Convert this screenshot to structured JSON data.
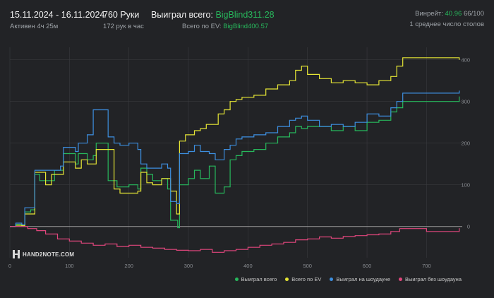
{
  "header": {
    "date_range": "15.11.2024 - 16.11.2024",
    "active_time": "Активен 4ч 25м",
    "hands": "760 Руки",
    "hands_per_hour": "172 рук в час",
    "won_total_label": "Выиграл всего:",
    "won_total_value": "BigBlind311.28",
    "ev_total_label": "Всего по EV:",
    "ev_total_value": "BigBlind400.57",
    "winrate_label": "Винрейт:",
    "winrate_value": "40.96",
    "winrate_hands": "66/100",
    "avg_tables": "1 среднее число столов"
  },
  "logo": {
    "text": "HAND2NOTE.COM"
  },
  "colors": {
    "won": "#27b85c",
    "ev": "#e6e635",
    "showdown": "#3d8fe0",
    "no_showdown": "#e0467c",
    "grid": "#393a3e",
    "zero": "#9a9a9a"
  },
  "chart_data": {
    "type": "line",
    "xlim": [
      0,
      760
    ],
    "ylim": [
      -75,
      430
    ],
    "x_ticks": [
      "0",
      "100",
      "200",
      "300",
      "400",
      "500",
      "600",
      "700"
    ],
    "y_ticks": [
      "0",
      "100",
      "200",
      "300",
      "400"
    ],
    "legend_placement": "bottom-right",
    "series": [
      {
        "name": "Выиграл всего",
        "color": "#27b85c",
        "points": [
          [
            0,
            0
          ],
          [
            10,
            5
          ],
          [
            20,
            2
          ],
          [
            25,
            35
          ],
          [
            35,
            40
          ],
          [
            42,
            125
          ],
          [
            50,
            110
          ],
          [
            60,
            110
          ],
          [
            75,
            135
          ],
          [
            85,
            135
          ],
          [
            90,
            175
          ],
          [
            100,
            175
          ],
          [
            110,
            150
          ],
          [
            115,
            175
          ],
          [
            130,
            160
          ],
          [
            140,
            170
          ],
          [
            145,
            200
          ],
          [
            160,
            200
          ],
          [
            165,
            110
          ],
          [
            180,
            95
          ],
          [
            200,
            100
          ],
          [
            215,
            90
          ],
          [
            220,
            140
          ],
          [
            230,
            125
          ],
          [
            240,
            110
          ],
          [
            255,
            115
          ],
          [
            265,
            90
          ],
          [
            270,
            15
          ],
          [
            282,
            -3
          ],
          [
            285,
            100
          ],
          [
            300,
            115
          ],
          [
            310,
            135
          ],
          [
            320,
            115
          ],
          [
            335,
            145
          ],
          [
            345,
            80
          ],
          [
            360,
            95
          ],
          [
            370,
            160
          ],
          [
            380,
            170
          ],
          [
            390,
            180
          ],
          [
            410,
            185
          ],
          [
            430,
            200
          ],
          [
            450,
            215
          ],
          [
            470,
            225
          ],
          [
            480,
            240
          ],
          [
            490,
            235
          ],
          [
            500,
            240
          ],
          [
            520,
            240
          ],
          [
            540,
            230
          ],
          [
            560,
            240
          ],
          [
            580,
            230
          ],
          [
            600,
            250
          ],
          [
            620,
            255
          ],
          [
            640,
            275
          ],
          [
            650,
            285
          ],
          [
            660,
            300
          ],
          [
            755,
            312
          ]
        ]
      },
      {
        "name": "Всего по EV",
        "color": "#e6e635",
        "points": [
          [
            0,
            0
          ],
          [
            10,
            3
          ],
          [
            20,
            2
          ],
          [
            25,
            30
          ],
          [
            35,
            30
          ],
          [
            42,
            130
          ],
          [
            50,
            130
          ],
          [
            60,
            100
          ],
          [
            70,
            125
          ],
          [
            85,
            125
          ],
          [
            90,
            155
          ],
          [
            100,
            155
          ],
          [
            110,
            140
          ],
          [
            120,
            160
          ],
          [
            130,
            150
          ],
          [
            140,
            150
          ],
          [
            145,
            185
          ],
          [
            160,
            185
          ],
          [
            175,
            90
          ],
          [
            185,
            80
          ],
          [
            200,
            80
          ],
          [
            215,
            85
          ],
          [
            220,
            130
          ],
          [
            230,
            105
          ],
          [
            240,
            100
          ],
          [
            255,
            115
          ],
          [
            270,
            85
          ],
          [
            280,
            30
          ],
          [
            285,
            205
          ],
          [
            295,
            220
          ],
          [
            310,
            230
          ],
          [
            320,
            235
          ],
          [
            330,
            245
          ],
          [
            345,
            245
          ],
          [
            350,
            270
          ],
          [
            360,
            280
          ],
          [
            370,
            300
          ],
          [
            380,
            305
          ],
          [
            390,
            310
          ],
          [
            410,
            315
          ],
          [
            430,
            330
          ],
          [
            450,
            340
          ],
          [
            470,
            350
          ],
          [
            480,
            375
          ],
          [
            490,
            385
          ],
          [
            500,
            365
          ],
          [
            520,
            355
          ],
          [
            540,
            345
          ],
          [
            560,
            350
          ],
          [
            580,
            345
          ],
          [
            600,
            340
          ],
          [
            620,
            350
          ],
          [
            640,
            360
          ],
          [
            650,
            385
          ],
          [
            660,
            405
          ],
          [
            755,
            400
          ]
        ]
      },
      {
        "name": "Выиграл на шоудауне",
        "color": "#3d8fe0",
        "points": [
          [
            0,
            0
          ],
          [
            10,
            8
          ],
          [
            20,
            5
          ],
          [
            25,
            45
          ],
          [
            35,
            45
          ],
          [
            42,
            135
          ],
          [
            50,
            135
          ],
          [
            60,
            135
          ],
          [
            75,
            135
          ],
          [
            85,
            145
          ],
          [
            90,
            190
          ],
          [
            100,
            190
          ],
          [
            110,
            180
          ],
          [
            115,
            200
          ],
          [
            130,
            220
          ],
          [
            140,
            280
          ],
          [
            145,
            280
          ],
          [
            155,
            280
          ],
          [
            165,
            215
          ],
          [
            175,
            200
          ],
          [
            185,
            195
          ],
          [
            200,
            200
          ],
          [
            215,
            185
          ],
          [
            220,
            150
          ],
          [
            230,
            140
          ],
          [
            240,
            140
          ],
          [
            255,
            150
          ],
          [
            265,
            140
          ],
          [
            270,
            60
          ],
          [
            280,
            55
          ],
          [
            285,
            175
          ],
          [
            300,
            180
          ],
          [
            310,
            195
          ],
          [
            320,
            180
          ],
          [
            335,
            175
          ],
          [
            345,
            160
          ],
          [
            360,
            185
          ],
          [
            370,
            195
          ],
          [
            380,
            210
          ],
          [
            390,
            215
          ],
          [
            410,
            220
          ],
          [
            430,
            225
          ],
          [
            450,
            240
          ],
          [
            470,
            255
          ],
          [
            480,
            260
          ],
          [
            490,
            265
          ],
          [
            500,
            255
          ],
          [
            520,
            240
          ],
          [
            540,
            245
          ],
          [
            560,
            240
          ],
          [
            580,
            250
          ],
          [
            600,
            270
          ],
          [
            620,
            265
          ],
          [
            640,
            285
          ],
          [
            650,
            300
          ],
          [
            660,
            320
          ],
          [
            755,
            326
          ]
        ]
      },
      {
        "name": "Выиграл без шоудауна",
        "color": "#e0467c",
        "points": [
          [
            0,
            0
          ],
          [
            30,
            -5
          ],
          [
            45,
            -10
          ],
          [
            60,
            -18
          ],
          [
            80,
            -30
          ],
          [
            100,
            -35
          ],
          [
            120,
            -40
          ],
          [
            140,
            -45
          ],
          [
            160,
            -42
          ],
          [
            180,
            -48
          ],
          [
            200,
            -45
          ],
          [
            220,
            -50
          ],
          [
            240,
            -52
          ],
          [
            260,
            -55
          ],
          [
            280,
            -57
          ],
          [
            300,
            -58
          ],
          [
            320,
            -55
          ],
          [
            340,
            -62
          ],
          [
            360,
            -58
          ],
          [
            380,
            -55
          ],
          [
            400,
            -50
          ],
          [
            420,
            -45
          ],
          [
            440,
            -42
          ],
          [
            460,
            -38
          ],
          [
            480,
            -32
          ],
          [
            500,
            -30
          ],
          [
            520,
            -25
          ],
          [
            540,
            -28
          ],
          [
            560,
            -24
          ],
          [
            580,
            -22
          ],
          [
            600,
            -20
          ],
          [
            620,
            -18
          ],
          [
            640,
            -12
          ],
          [
            655,
            -5
          ],
          [
            700,
            -12
          ],
          [
            755,
            -4
          ]
        ]
      }
    ]
  }
}
